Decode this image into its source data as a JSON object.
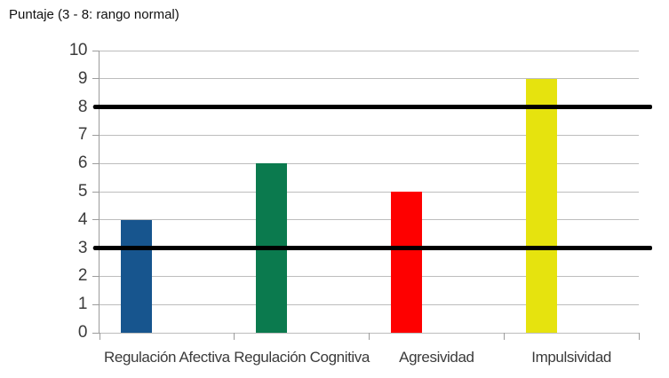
{
  "chart_data": {
    "type": "bar",
    "title": "Puntaje (3 - 8: rango normal)",
    "categories": [
      "Regulación Afectiva",
      "Regulación Cognitiva",
      "Agresividad",
      "Impulsividad"
    ],
    "values": [
      4,
      6,
      5,
      9
    ],
    "series": [
      {
        "name": "Puntaje",
        "values": [
          4,
          6,
          5,
          9
        ]
      }
    ],
    "bar_colors": [
      "#17558E",
      "#0B7A4E",
      "#FE0000",
      "#E6E30E"
    ],
    "ylim": [
      0,
      10
    ],
    "yticks": [
      0,
      1,
      2,
      3,
      4,
      5,
      6,
      7,
      8,
      9,
      10
    ],
    "xlabel": "",
    "ylabel": "",
    "grid": true,
    "legend": false,
    "reference_lines": {
      "values": [
        3,
        8
      ],
      "color": "#000000"
    },
    "colors": {
      "gridline": "#BDBDBD",
      "axis": "#9C9C9C",
      "tick_label": "#3B3B3B",
      "category_label": "#3B3B3B",
      "title": "#111111",
      "background": "#FFFFFF"
    }
  }
}
